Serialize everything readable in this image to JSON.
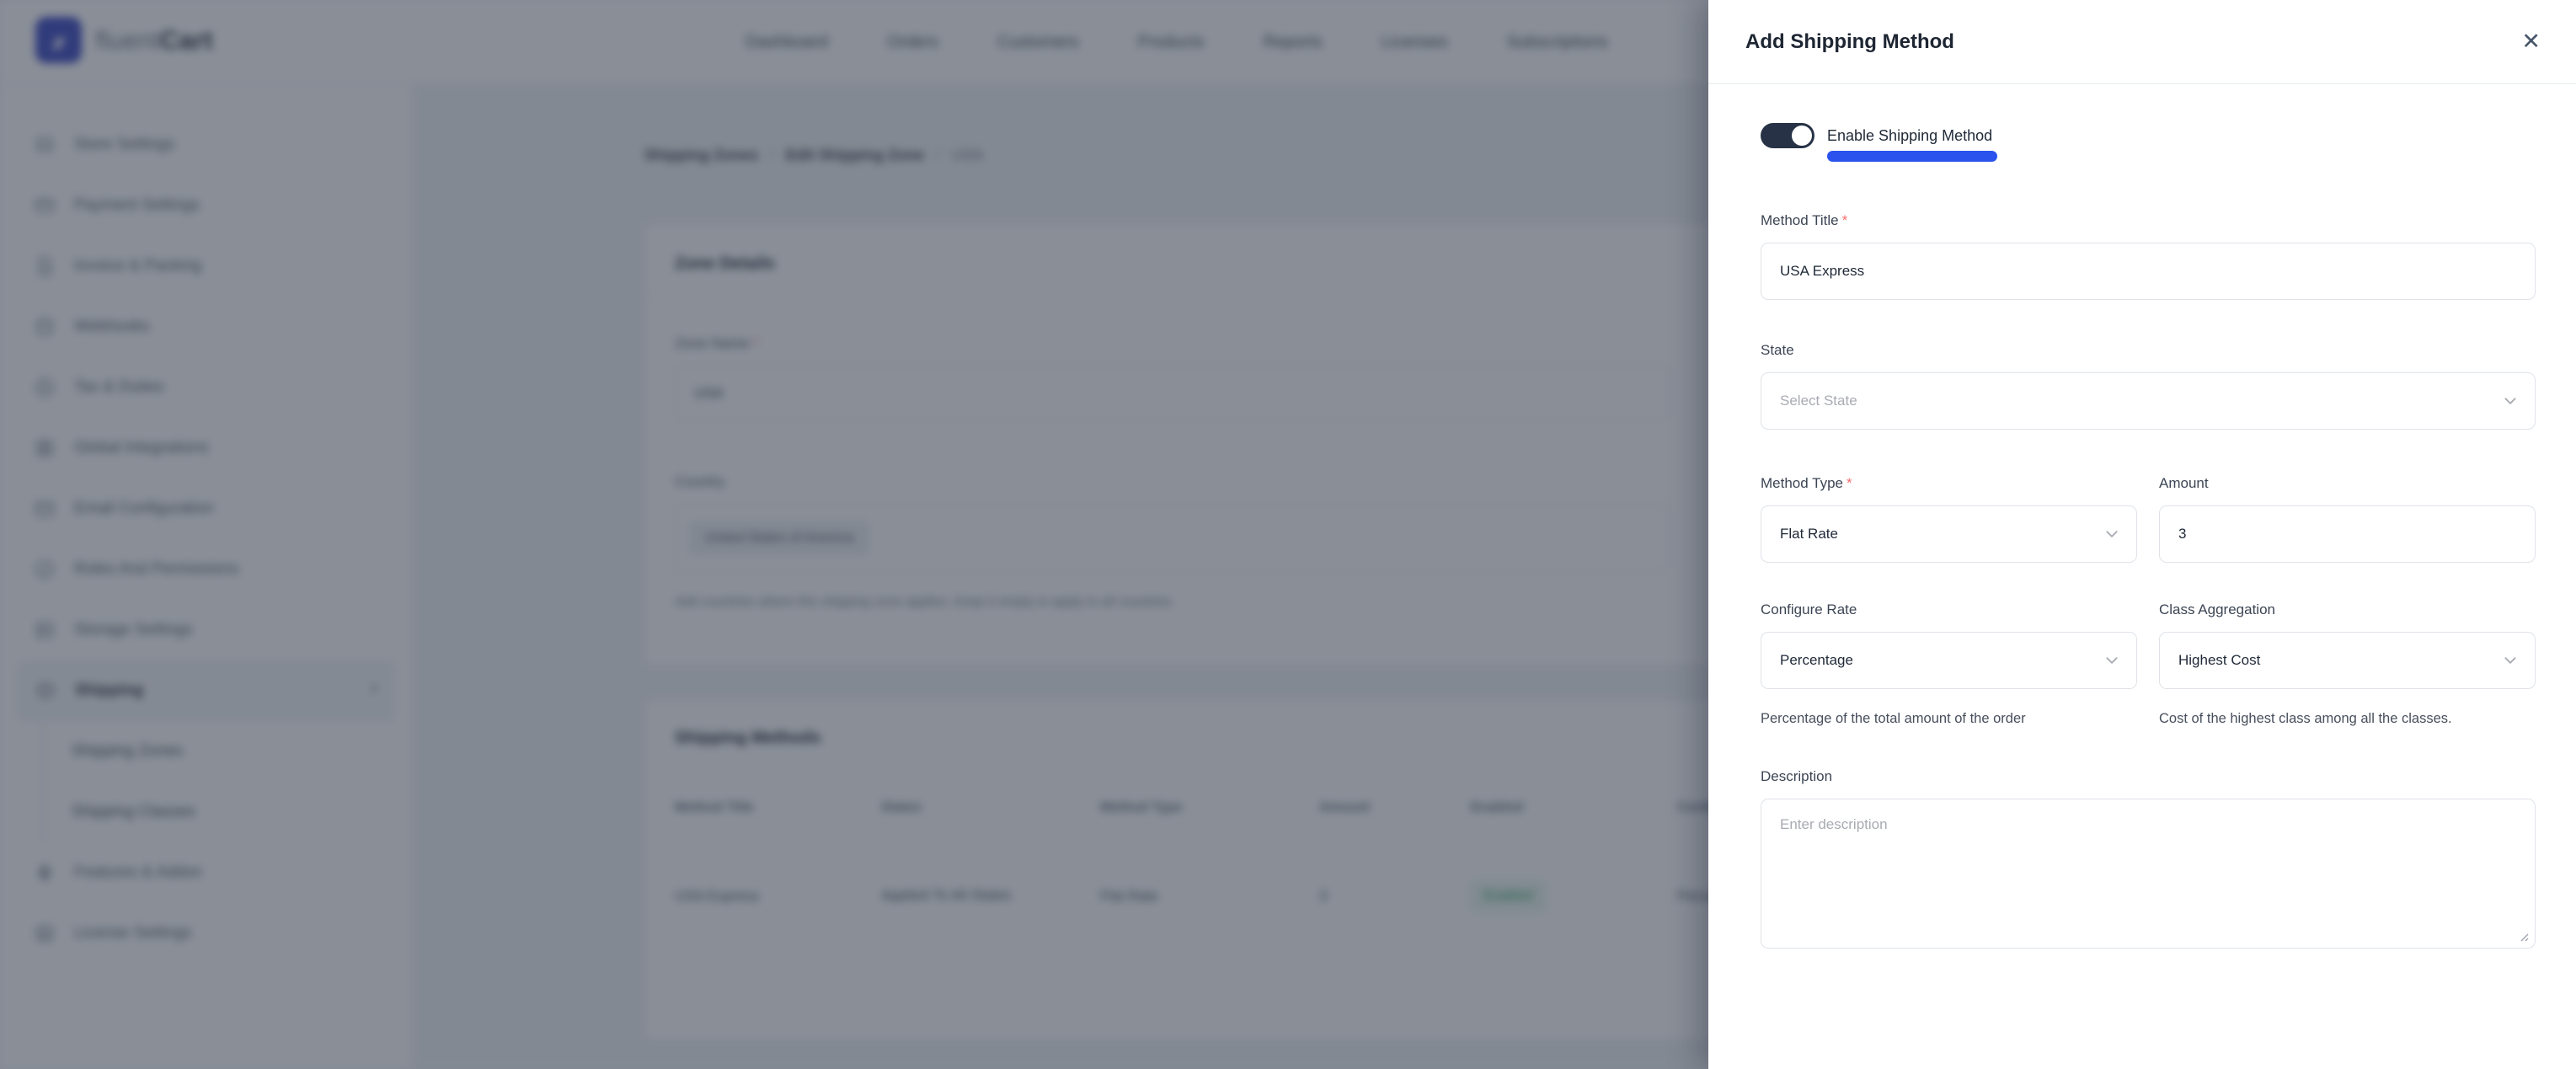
{
  "brand": {
    "fluent": "fluent",
    "cart": "Cart"
  },
  "topnav": {
    "items": [
      "Dashboard",
      "Orders",
      "Customers",
      "Products",
      "Reports",
      "Licenses",
      "Subscriptions"
    ]
  },
  "sidebar": {
    "items": [
      {
        "id": "store-settings",
        "label": "Store Settings",
        "icon": "store-icon"
      },
      {
        "id": "payment-settings",
        "label": "Payment Settings",
        "icon": "credit-card-icon"
      },
      {
        "id": "invoice-packing",
        "label": "Invoice & Packing",
        "icon": "invoice-icon"
      },
      {
        "id": "webhooks",
        "label": "Webhooks",
        "icon": "webhook-icon"
      },
      {
        "id": "tax-duties",
        "label": "Tax & Duties",
        "icon": "percent-icon"
      },
      {
        "id": "global-integrations",
        "label": "Global Integrations",
        "icon": "integrations-icon"
      },
      {
        "id": "email-configuration",
        "label": "Email Configuration",
        "icon": "email-icon"
      },
      {
        "id": "roles-permissions",
        "label": "Roles And Permissions",
        "icon": "roles-icon"
      },
      {
        "id": "storage-settings",
        "label": "Storage Settings",
        "icon": "storage-icon"
      },
      {
        "id": "shipping",
        "label": "Shipping",
        "icon": "shipping-icon",
        "active": true,
        "children": [
          {
            "id": "shipping-zones",
            "label": "Shipping Zones"
          },
          {
            "id": "shipping-classes",
            "label": "Shipping Classes"
          }
        ]
      },
      {
        "id": "features-addon",
        "label": "Features & Addon",
        "icon": "addon-icon"
      },
      {
        "id": "license-settings",
        "label": "License Settings",
        "icon": "license-icon"
      }
    ]
  },
  "breadcrumb": {
    "items": [
      "Shipping Zones",
      "Edit Shipping Zone",
      "USA"
    ],
    "separator": "/"
  },
  "zone_details": {
    "title": "Zone Details",
    "zone_name_label": "Zone Name",
    "required_mark": "*",
    "zone_name_value": "USA",
    "country_label": "Country",
    "country_value": "United States of America",
    "helper": "Add countries where this shipping zone applies. Keep it empty to apply to all countries."
  },
  "shipping_methods": {
    "title": "Shipping Methods",
    "columns": [
      "Method Title",
      "States",
      "Method Type",
      "Amount",
      "Enabled",
      "Configure Rate"
    ],
    "rows": [
      {
        "method_title": "USA Express",
        "states": "Applied To All States",
        "method_type": "Flat Rate",
        "amount": "3",
        "enabled": "Enabled",
        "configure_rate": "Percentage"
      }
    ],
    "enabled_badge_bg": "#e7f6ee",
    "enabled_badge_color": "#13944f"
  },
  "modal": {
    "title": "Add Shipping Method",
    "close_glyph": "✕",
    "enable_label": "Enable Shipping Method",
    "required_mark": "*",
    "fields": {
      "method_title": {
        "label": "Method Title",
        "value": "USA Express"
      },
      "state": {
        "label": "State",
        "placeholder": "Select State"
      },
      "method_type": {
        "label": "Method Type",
        "value": "Flat Rate"
      },
      "amount": {
        "label": "Amount",
        "value": "3"
      },
      "configure_rate": {
        "label": "Configure Rate",
        "value": "Percentage",
        "helper": "Percentage of the total amount of the order"
      },
      "class_aggregation": {
        "label": "Class Aggregation",
        "value": "Highest Cost",
        "helper": "Cost of the highest class among all the classes."
      },
      "description": {
        "label": "Description",
        "placeholder": "Enter description",
        "value": ""
      }
    }
  },
  "colors": {
    "accent_blue": "#2b52ed",
    "toggle_on": "#273246",
    "logo_blue": "#2d3bbd",
    "required_red": "#f56c6c",
    "enabled_green": "#13944f"
  }
}
